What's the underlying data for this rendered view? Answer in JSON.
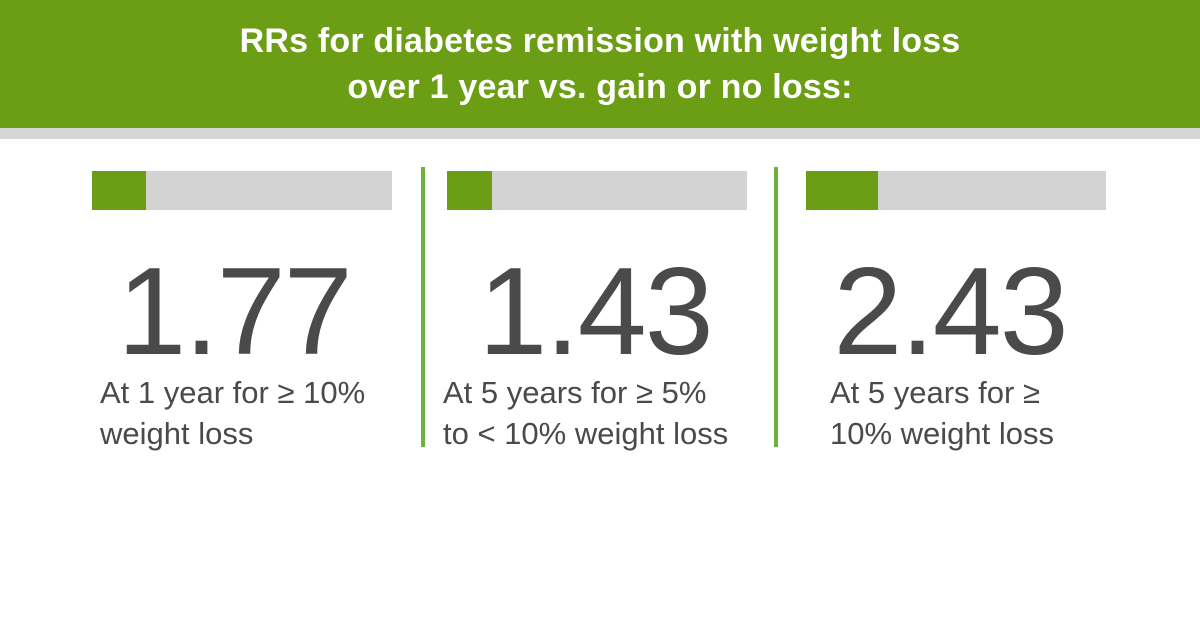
{
  "header": {
    "title_line1": "RRs for diabetes remission with weight loss",
    "title_line2": "over 1 year vs. gain or no loss:"
  },
  "colors": {
    "accent": "#6b9e14",
    "divider": "#6fb13a",
    "track": "#d3d3d3",
    "text": "#4a4a4a"
  },
  "chart_data": {
    "type": "bar",
    "title": "RRs for diabetes remission with weight loss over 1 year vs. gain or no loss:",
    "categories": [
      "At 1 year for ≥ 10% weight loss",
      "At 5 years for ≥ 5% to < 10% weight loss",
      "At 5 years for ≥ 10% weight loss"
    ],
    "values": [
      1.77,
      1.43,
      2.43
    ],
    "bar_fill_fractions": [
      0.18,
      0.15,
      0.24
    ]
  },
  "stats": [
    {
      "value": "1.77",
      "caption_line1": "At 1 year for ≥ 10%",
      "caption_line2": "weight loss"
    },
    {
      "value": "1.43",
      "caption_line1": "At 5 years for ≥ 5%",
      "caption_line2": "to < 10% weight loss"
    },
    {
      "value": "2.43",
      "caption_line1": "At 5 years for ≥",
      "caption_line2": "10% weight loss"
    }
  ]
}
